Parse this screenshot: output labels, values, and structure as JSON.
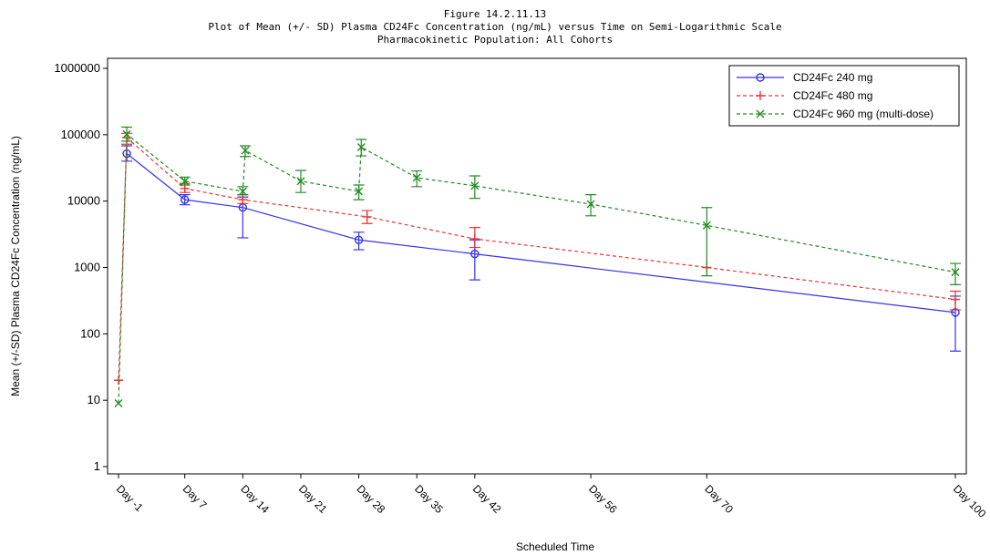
{
  "figure_title_lines": [
    "Figure 14.2.11.13",
    "Plot of Mean (+/- SD) Plasma CD24Fc Concentration (ng/mL) versus Time on Semi-Logarithmic Scale",
    "Pharmacokinetic Population: All Cohorts"
  ],
  "chart_data": {
    "type": "line",
    "xlabel": "Scheduled Time",
    "ylabel": "Mean (+/-SD) Plasma CD24Fc Concentration (ng/mL)",
    "y_scale": "log",
    "ylim": [
      1,
      1000000
    ],
    "y_ticks": [
      1,
      10,
      100,
      1000,
      10000,
      100000,
      1000000
    ],
    "y_tick_labels": [
      "1",
      "10",
      "100",
      "1000",
      "10000",
      "100000",
      "1000000"
    ],
    "xlim": [
      -1,
      100
    ],
    "x_ticks": [
      -1,
      7,
      14,
      21,
      28,
      35,
      42,
      56,
      70,
      100
    ],
    "x_tick_labels": [
      "Day -1",
      "Day 7",
      "Day 14",
      "Day 21",
      "Day 28",
      "Day 35",
      "Day 42",
      "Day 56",
      "Day 70",
      "Day 100"
    ],
    "legend_position": "top-right",
    "series": [
      {
        "name": "CD24Fc 240 mg",
        "color": "#3333ee",
        "dash": "solid",
        "marker": "circle",
        "points": [
          {
            "x": 0,
            "y": 52000,
            "lo": 40000,
            "hi": 68000
          },
          {
            "x": 7,
            "y": 10500,
            "lo": 8800,
            "hi": 12500
          },
          {
            "x": 14,
            "y": 8000,
            "lo": 2800,
            "hi": 11500
          },
          {
            "x": 28,
            "y": 2600,
            "lo": 1850,
            "hi": 3400
          },
          {
            "x": 42,
            "y": 1600,
            "lo": 650,
            "hi": 2600
          },
          {
            "x": 100,
            "y": 210,
            "lo": 55,
            "hi": 370
          }
        ]
      },
      {
        "name": "CD24Fc 480 mg",
        "color": "#ee3333",
        "dash": "dashed",
        "marker": "plus",
        "points": [
          {
            "x": -1,
            "y": 20
          },
          {
            "x": 0,
            "y": 90000,
            "lo": 72000,
            "hi": 105000
          },
          {
            "x": 7,
            "y": 15500,
            "lo": 13500,
            "hi": 18500
          },
          {
            "x": 14,
            "y": 10500,
            "lo": 9200,
            "hi": 12500
          },
          {
            "x": 29,
            "y": 5800,
            "lo": 4600,
            "hi": 7200
          },
          {
            "x": 42,
            "y": 2700,
            "lo": 2000,
            "hi": 4000
          },
          {
            "x": 70,
            "y": 1000
          },
          {
            "x": 100,
            "y": 330,
            "lo": 230,
            "hi": 440
          }
        ]
      },
      {
        "name": "CD24Fc 960 mg (multi-dose)",
        "color": "#228b22",
        "dash": "dashed",
        "marker": "x",
        "points": [
          {
            "x": -1,
            "y": 9
          },
          {
            "x": 0,
            "y": 102000,
            "lo": 80000,
            "hi": 130000
          },
          {
            "x": 7,
            "y": 20000,
            "lo": 17500,
            "hi": 23000
          },
          {
            "x": 14,
            "y": 14000,
            "lo": 12500,
            "hi": 16500
          },
          {
            "x": 14.3,
            "y": 58000,
            "lo": 47000,
            "hi": 68000
          },
          {
            "x": 21,
            "y": 20000,
            "lo": 13500,
            "hi": 29000
          },
          {
            "x": 28,
            "y": 14000,
            "lo": 10500,
            "hi": 17500
          },
          {
            "x": 28.3,
            "y": 65000,
            "lo": 48000,
            "hi": 85000
          },
          {
            "x": 35,
            "y": 22500,
            "lo": 16500,
            "hi": 28500
          },
          {
            "x": 42,
            "y": 17000,
            "lo": 11000,
            "hi": 24000
          },
          {
            "x": 56,
            "y": 9000,
            "lo": 6000,
            "hi": 12500
          },
          {
            "x": 70,
            "y": 4300,
            "lo": 750,
            "hi": 8000
          },
          {
            "x": 100,
            "y": 850,
            "lo": 550,
            "hi": 1150
          }
        ]
      }
    ]
  }
}
